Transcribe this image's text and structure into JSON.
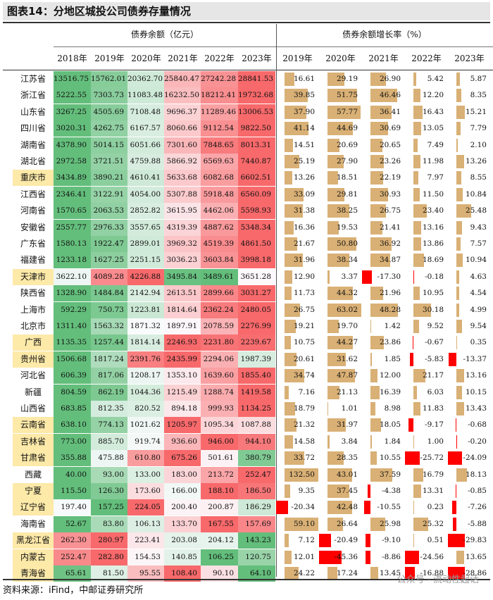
{
  "title": "图表14：分地区城投公司债券存量情况",
  "header": {
    "balance_group": "债券余额（亿元）",
    "growth_group": "债券余额增长率（%）",
    "balance_years": [
      "2018年",
      "2019年",
      "2020年",
      "2021年",
      "2022年",
      "2023年"
    ],
    "growth_years": [
      "2019年",
      "2020年",
      "2021年",
      "2022年",
      "2023年"
    ]
  },
  "rows": [
    {
      "prov": "江苏省",
      "hl": false,
      "bal": [
        "13516.75",
        "15762.01",
        "20362.70",
        "25840.47",
        "27242.28",
        "28841.53"
      ],
      "gr": [
        "16.61",
        "29.19",
        "26.90",
        "5.42",
        "5.87"
      ]
    },
    {
      "prov": "浙江省",
      "hl": false,
      "bal": [
        "5222.55",
        "7303.73",
        "11083.48",
        "16232.50",
        "18212.41",
        "19732.68"
      ],
      "gr": [
        "39.85",
        "51.75",
        "46.46",
        "12.20",
        "8.35"
      ]
    },
    {
      "prov": "山东省",
      "hl": false,
      "bal": [
        "3267.25",
        "4505.69",
        "7108.48",
        "9696.37",
        "11289.46",
        "13006.53"
      ],
      "gr": [
        "37.90",
        "57.77",
        "36.41",
        "16.43",
        "15.21"
      ]
    },
    {
      "prov": "四川省",
      "hl": false,
      "bal": [
        "3020.31",
        "4262.75",
        "6167.57",
        "8060.66",
        "9112.54",
        "9822.50"
      ],
      "gr": [
        "41.14",
        "44.69",
        "30.69",
        "13.05",
        "7.79"
      ]
    },
    {
      "prov": "湖南省",
      "hl": false,
      "bal": [
        "4378.90",
        "5014.15",
        "6051.66",
        "7301.60",
        "7848.65",
        "8013.31"
      ],
      "gr": [
        "14.51",
        "20.69",
        "20.65",
        "7.49",
        "2.10"
      ]
    },
    {
      "prov": "湖北省",
      "hl": false,
      "bal": [
        "2972.58",
        "3721.51",
        "4759.88",
        "5866.92",
        "6569.63",
        "7440.87"
      ],
      "gr": [
        "25.19",
        "27.90",
        "23.26",
        "11.98",
        "13.26"
      ]
    },
    {
      "prov": "重庆市",
      "hl": true,
      "bal": [
        "3434.89",
        "3890.21",
        "4610.41",
        "5633.68",
        "6082.68",
        "6602.51"
      ],
      "gr": [
        "13.26",
        "18.51",
        "22.19",
        "7.97",
        "8.55"
      ]
    },
    {
      "prov": "江西省",
      "hl": false,
      "bal": [
        "2346.41",
        "3122.91",
        "4054.00",
        "5307.88",
        "5918.48",
        "6560.09"
      ],
      "gr": [
        "33.09",
        "29.81",
        "30.93",
        "11.50",
        "10.84"
      ]
    },
    {
      "prov": "河南省",
      "hl": false,
      "bal": [
        "1570.65",
        "2063.53",
        "2852.82",
        "3615.95",
        "4462.06",
        "5598.93"
      ],
      "gr": [
        "31.38",
        "38.25",
        "26.75",
        "23.40",
        "25.48"
      ]
    },
    {
      "prov": "安徽省",
      "hl": false,
      "bal": [
        "2557.77",
        "2976.33",
        "3557.65",
        "4319.39",
        "4887.62",
        "5348.34"
      ],
      "gr": [
        "16.36",
        "19.53",
        "21.41",
        "13.16",
        "9.43"
      ]
    },
    {
      "prov": "广东省",
      "hl": false,
      "bal": [
        "1580.13",
        "1922.47",
        "2899.01",
        "3969.32",
        "4519.39",
        "4861.50"
      ],
      "gr": [
        "21.67",
        "50.80",
        "36.92",
        "13.86",
        "7.57"
      ]
    },
    {
      "prov": "福建省",
      "hl": false,
      "bal": [
        "1233.18",
        "1627.25",
        "2251.15",
        "3036.23",
        "3603.84",
        "3998.18"
      ],
      "gr": [
        "31.96",
        "38.34",
        "34.87",
        "18.69",
        "10.94"
      ]
    },
    {
      "prov": "天津市",
      "hl": true,
      "bal": [
        "3622.10",
        "4089.28",
        "4226.88",
        "3495.84",
        "3489.61",
        "3651.28"
      ],
      "gr": [
        "12.90",
        "3.37",
        "-17.30",
        "-0.18",
        "4.63"
      ]
    },
    {
      "prov": "陕西省",
      "hl": false,
      "bal": [
        "1328.90",
        "1484.84",
        "2142.94",
        "2613.51",
        "2899.66",
        "3031.27"
      ],
      "gr": [
        "11.73",
        "44.32",
        "21.96",
        "10.95",
        "4.54"
      ]
    },
    {
      "prov": "上海市",
      "hl": false,
      "bal": [
        "592.29",
        "750.73",
        "1223.81",
        "1814.64",
        "2362.24",
        "2480.05"
      ],
      "gr": [
        "26.75",
        "63.02",
        "48.28",
        "30.18",
        "4.99"
      ]
    },
    {
      "prov": "北京市",
      "hl": false,
      "bal": [
        "1311.40",
        "1563.32",
        "1871.32",
        "1897.91",
        "2078.59",
        "2276.99"
      ],
      "gr": [
        "19.21",
        "19.70",
        "1.42",
        "9.52",
        "9.54"
      ]
    },
    {
      "prov": "广西",
      "hl": true,
      "bal": [
        "1135.35",
        "1257.44",
        "1814.14",
        "2246.93",
        "2231.80",
        "2239.67"
      ],
      "gr": [
        "10.75",
        "44.27",
        "23.86",
        "-0.67",
        "0.35"
      ]
    },
    {
      "prov": "贵州省",
      "hl": true,
      "bal": [
        "1506.68",
        "1817.24",
        "2391.76",
        "2435.99",
        "2294.06",
        "1987.39"
      ],
      "gr": [
        "20.61",
        "31.62",
        "1.85",
        "-5.83",
        "-13.37"
      ]
    },
    {
      "prov": "河北省",
      "hl": false,
      "bal": [
        "606.39",
        "817.06",
        "1208.17",
        "1353.10",
        "1639.60",
        "1855.40"
      ],
      "gr": [
        "34.74",
        "47.87",
        "12.00",
        "21.17",
        "13.16"
      ]
    },
    {
      "prov": "新疆",
      "hl": false,
      "bal": [
        "804.59",
        "862.19",
        "1044.36",
        "1215.49",
        "1288.74",
        "1419.58"
      ],
      "gr": [
        "7.16",
        "21.13",
        "16.39",
        "6.03",
        "10.15"
      ]
    },
    {
      "prov": "山西省",
      "hl": false,
      "bal": [
        "683.85",
        "812.35",
        "820.52",
        "894.18",
        "999.93",
        "1134.25"
      ],
      "gr": [
        "18.79",
        "1.01",
        "8.98",
        "11.83",
        "13.43"
      ]
    },
    {
      "prov": "云南省",
      "hl": true,
      "bal": [
        "638.10",
        "774.13",
        "1021.62",
        "1205.97",
        "1095.34",
        "1087.88"
      ],
      "gr": [
        "21.32",
        "31.97",
        "18.05",
        "-9.17",
        "-0.68"
      ]
    },
    {
      "prov": "吉林省",
      "hl": true,
      "bal": [
        "773.00",
        "885.70",
        "919.74",
        "936.60",
        "946.00",
        "944.10"
      ],
      "gr": [
        "14.58",
        "3.84",
        "1.84",
        "1.00",
        "-0.20"
      ]
    },
    {
      "prov": "甘肃省",
      "hl": true,
      "bal": [
        "355.88",
        "475.88",
        "610.80",
        "675.26",
        "501.61",
        "380.79"
      ],
      "gr": [
        "33.72",
        "28.35",
        "10.55",
        "-25.72",
        "-24.09"
      ]
    },
    {
      "prov": "西藏",
      "hl": false,
      "bal": [
        "40.00",
        "93.00",
        "133.00",
        "183.00",
        "213.72",
        "252.47"
      ],
      "gr": [
        "132.50",
        "43.01",
        "37.59",
        "16.79",
        "18.13"
      ]
    },
    {
      "prov": "宁夏",
      "hl": true,
      "bal": [
        "115.50",
        "126.30",
        "173.60",
        "166.00",
        "188.10",
        "186.50"
      ],
      "gr": [
        "9.35",
        "37.45",
        "-4.38",
        "13.31",
        "-0.85"
      ]
    },
    {
      "prov": "辽宁省",
      "hl": true,
      "bal": [
        "197.40",
        "157.25",
        "224.05",
        "200.40",
        "200.87",
        "186.29"
      ],
      "gr": [
        "-20.34",
        "42.48",
        "-10.55",
        "0.23",
        "-7.26"
      ]
    },
    {
      "prov": "海南省",
      "hl": false,
      "bal": [
        "52.67",
        "83.80",
        "106.13",
        "133.70",
        "167.55",
        "157.69"
      ],
      "gr": [
        "59.10",
        "26.64",
        "25.98",
        "25.32",
        "-5.88"
      ]
    },
    {
      "prov": "黑龙江省",
      "hl": true,
      "bal": [
        "262.30",
        "280.97",
        "223.41",
        "203.08",
        "204.12",
        "143.23"
      ],
      "gr": [
        "7.12",
        "-20.49",
        "-9.10",
        "0.51",
        "-29.83"
      ]
    },
    {
      "prov": "内蒙古",
      "hl": true,
      "bal": [
        "252.47",
        "282.80",
        "154.53",
        "140.85",
        "106.25",
        "120.75"
      ],
      "gr": [
        "12.01",
        "-45.36",
        "-8.86",
        "-24.56",
        "13.65"
      ]
    },
    {
      "prov": "青海省",
      "hl": true,
      "bal": [
        "65.61",
        "81.50",
        "95.55",
        "108.40",
        "90.10",
        "64.10"
      ],
      "gr": [
        "24.22",
        "17.24",
        "13.45",
        "-16.88",
        "-28.86"
      ]
    }
  ],
  "colors": {
    "bar_pos": "#d9b075",
    "bar_neg": "#ff0000",
    "green": "#5cb85c",
    "red": "#f26a6a",
    "highlight": "#fde9a8"
  },
  "footer": "资料来源：iFind，中邮证券研究所",
  "watermark": "公众号 · 流动性起话"
}
